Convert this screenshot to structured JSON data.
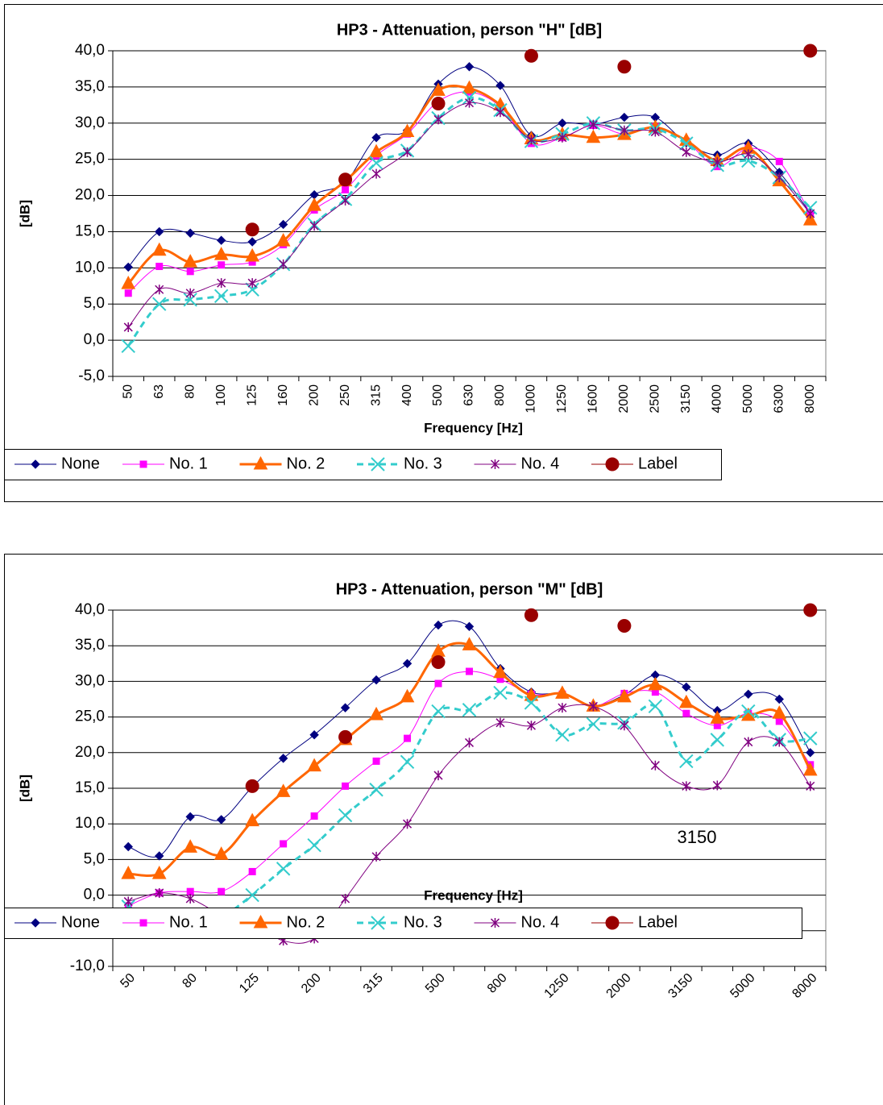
{
  "chart_data": [
    {
      "type": "line",
      "title": "HP3 -  Attenuation, person \"H\" [dB]",
      "x_label": "Frequency [Hz]",
      "y_label": "[dB]",
      "categories": [
        "50",
        "63",
        "80",
        "100",
        "125",
        "160",
        "200",
        "250",
        "315",
        "400",
        "500",
        "630",
        "800",
        "1000",
        "1250",
        "1600",
        "2000",
        "2500",
        "3150",
        "4000",
        "5000",
        "6300",
        "8000"
      ],
      "x_label_rotation": -90,
      "ylim": [
        -5,
        40
      ],
      "yticks": [
        {
          "value": -5,
          "label": "-5,0"
        },
        {
          "value": 0,
          "label": "0,0"
        },
        {
          "value": 5,
          "label": "5,0"
        },
        {
          "value": 10,
          "label": "10,0"
        },
        {
          "value": 15,
          "label": "15,0"
        },
        {
          "value": 20,
          "label": "20,0"
        },
        {
          "value": 25,
          "label": "25,0"
        },
        {
          "value": 30,
          "label": "30,0"
        },
        {
          "value": 35,
          "label": "35,0"
        },
        {
          "value": 40,
          "label": "40,0"
        }
      ],
      "grid": true,
      "legend": "bottom",
      "series": [
        {
          "name": "None",
          "color": "#000080",
          "marker": "diamond",
          "line": "solid",
          "line_width": 1,
          "values": [
            10.1,
            15.0,
            14.8,
            13.8,
            13.6,
            16.0,
            20.1,
            21.8,
            28.0,
            29.0,
            35.4,
            37.8,
            35.2,
            28.3,
            30.0,
            29.8,
            30.8,
            30.8,
            27.3,
            25.6,
            27.2,
            23.2,
            17.6
          ]
        },
        {
          "name": "No. 1",
          "color": "#ff00ff",
          "marker": "square",
          "line": "solid",
          "line_width": 1,
          "values": [
            6.5,
            10.2,
            9.5,
            10.4,
            10.8,
            13.2,
            18.0,
            20.8,
            25.5,
            28.5,
            33.0,
            34.3,
            32.3,
            27.2,
            28.0,
            29.7,
            28.5,
            29.5,
            27.5,
            24.0,
            26.5,
            24.7,
            17.5
          ]
        },
        {
          "name": "No. 2",
          "color": "#ff6600",
          "marker": "triangle",
          "line": "solid",
          "line_width": 3,
          "values": [
            7.8,
            12.4,
            10.8,
            11.8,
            11.6,
            13.7,
            18.6,
            22.0,
            26.0,
            28.8,
            34.5,
            34.8,
            32.5,
            27.8,
            28.4,
            28.0,
            28.4,
            29.4,
            27.6,
            24.8,
            26.5,
            22.0,
            16.6
          ]
        },
        {
          "name": "No. 3",
          "color": "#33cccc",
          "marker": "x",
          "line": "dashed",
          "line_width": 3,
          "values": [
            -0.8,
            5.0,
            5.6,
            6.1,
            7.0,
            10.5,
            16.0,
            19.5,
            24.5,
            26.2,
            30.7,
            33.5,
            31.8,
            27.5,
            28.5,
            30.0,
            29.0,
            29.2,
            27.2,
            24.2,
            24.8,
            22.5,
            18.3
          ]
        },
        {
          "name": "No. 4",
          "color": "#800080",
          "marker": "star",
          "line": "solid",
          "line_width": 1,
          "values": [
            1.8,
            7.0,
            6.5,
            7.9,
            7.9,
            10.5,
            15.8,
            19.3,
            23.0,
            26.0,
            30.5,
            32.8,
            31.5,
            27.7,
            28.0,
            29.8,
            29.0,
            28.8,
            26.0,
            24.6,
            25.7,
            22.5,
            17.5
          ]
        },
        {
          "name": "Label",
          "color": "#990000",
          "marker": "circle",
          "line": "none",
          "line_width": 1,
          "values": [
            null,
            null,
            null,
            null,
            15.3,
            null,
            null,
            22.2,
            null,
            null,
            32.7,
            null,
            null,
            39.3,
            null,
            null,
            37.8,
            null,
            null,
            null,
            null,
            null,
            40.0
          ]
        }
      ]
    },
    {
      "type": "line",
      "title": "HP3 -  Attenuation, person \"M\" [dB]",
      "x_label": "Frequency [Hz]",
      "y_label": "[dB]",
      "categories": [
        "50",
        null,
        "80",
        null,
        "125",
        null,
        "200",
        null,
        "315",
        null,
        "500",
        null,
        "800",
        null,
        "1250",
        null,
        "2000",
        null,
        "3150",
        null,
        "5000",
        null,
        "8000"
      ],
      "x_label_rotation": -45,
      "ylim": [
        -10,
        40
      ],
      "yticks": [
        {
          "value": -10,
          "label": "-10,0"
        },
        {
          "value": -5,
          "label": "-5,0"
        },
        {
          "value": 0,
          "label": "0,0"
        },
        {
          "value": 5,
          "label": "5,0"
        },
        {
          "value": 10,
          "label": "10,0"
        },
        {
          "value": 15,
          "label": "15,0"
        },
        {
          "value": 20,
          "label": "20,0"
        },
        {
          "value": 25,
          "label": "25,0"
        },
        {
          "value": 30,
          "label": "30,0"
        },
        {
          "value": 35,
          "label": "35,0"
        },
        {
          "value": 40,
          "label": "40,0"
        }
      ],
      "grid": true,
      "legend": "bottom",
      "annotations": [
        "3150"
      ],
      "series": [
        {
          "name": "None",
          "color": "#000080",
          "marker": "diamond",
          "line": "solid",
          "line_width": 1,
          "values": [
            6.8,
            5.5,
            11.0,
            10.6,
            15.2,
            19.2,
            22.5,
            26.3,
            30.2,
            32.5,
            37.9,
            37.7,
            31.8,
            28.5,
            28.2,
            26.6,
            28.1,
            30.9,
            29.2,
            25.9,
            28.2,
            27.5,
            20.0
          ]
        },
        {
          "name": "No. 1",
          "color": "#ff00ff",
          "marker": "square",
          "line": "solid",
          "line_width": 1,
          "values": [
            -1.5,
            0.3,
            0.5,
            0.5,
            3.3,
            7.2,
            11.1,
            15.3,
            18.8,
            22.0,
            29.7,
            31.4,
            30.3,
            28.2,
            28.2,
            26.5,
            28.3,
            28.5,
            25.5,
            23.8,
            25.5,
            24.4,
            18.3
          ]
        },
        {
          "name": "No. 2",
          "color": "#ff6600",
          "marker": "triangle",
          "line": "solid",
          "line_width": 3,
          "values": [
            3.0,
            3.0,
            6.7,
            5.7,
            10.4,
            14.5,
            18.1,
            21.8,
            25.3,
            27.8,
            34.2,
            35.1,
            31.2,
            28.0,
            28.3,
            26.5,
            27.8,
            29.5,
            27.0,
            24.8,
            25.2,
            25.5,
            17.5
          ]
        },
        {
          "name": "No. 3",
          "color": "#33cccc",
          "marker": "x",
          "line": "dashed",
          "line_width": 3,
          "values": [
            -1.6,
            -4.0,
            -3.5,
            -3.0,
            0.0,
            3.7,
            7.0,
            11.2,
            14.8,
            18.7,
            25.8,
            26.0,
            28.4,
            27.0,
            22.5,
            24.0,
            24.2,
            26.5,
            18.8,
            21.8,
            25.8,
            21.8,
            22.0
          ]
        },
        {
          "name": "No. 4",
          "color": "#800080",
          "marker": "star",
          "line": "solid",
          "line_width": 1,
          "values": [
            -0.9,
            0.3,
            -0.5,
            -2.7,
            -3.8,
            -6.4,
            -6.1,
            -0.5,
            5.4,
            10.0,
            16.8,
            21.4,
            24.2,
            23.8,
            26.3,
            26.5,
            23.8,
            18.2,
            15.3,
            15.4,
            21.5,
            21.5,
            15.3
          ]
        },
        {
          "name": "Label",
          "color": "#990000",
          "marker": "circle",
          "line": "none",
          "line_width": 1,
          "values": [
            null,
            null,
            null,
            null,
            15.3,
            null,
            null,
            22.2,
            null,
            null,
            32.7,
            null,
            null,
            39.3,
            null,
            null,
            37.8,
            null,
            null,
            null,
            null,
            null,
            40.0
          ]
        }
      ]
    }
  ]
}
